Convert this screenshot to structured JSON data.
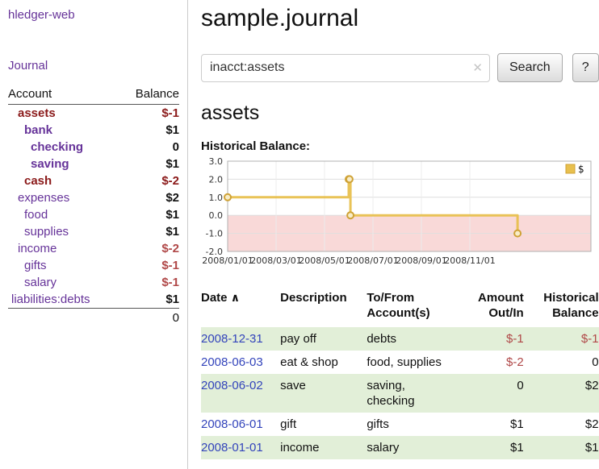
{
  "colors": {
    "purple": "#663399",
    "blue": "#3344bb",
    "red": "#b04848",
    "redDark": "#8b1a1a",
    "green": "#e2efd8"
  },
  "sidebar": {
    "app_title": "hledger-web",
    "journal_label": "Journal",
    "accounts": {
      "header": {
        "account": "Account",
        "balance": "Balance"
      },
      "rows": [
        {
          "name": "assets",
          "balance": "$-1",
          "depth": 1,
          "bold": true,
          "name_neg": true,
          "bal_neg": true
        },
        {
          "name": "bank",
          "balance": "$1",
          "depth": 2,
          "bold": true,
          "name_neg": false,
          "bal_neg": false
        },
        {
          "name": "checking",
          "balance": "0",
          "depth": 3,
          "bold": true,
          "name_neg": false,
          "bal_neg": false
        },
        {
          "name": "saving",
          "balance": "$1",
          "depth": 3,
          "bold": true,
          "name_neg": false,
          "bal_neg": false
        },
        {
          "name": "cash",
          "balance": "$-2",
          "depth": 2,
          "bold": true,
          "name_neg": true,
          "bal_neg": true
        },
        {
          "name": "expenses",
          "balance": "$2",
          "depth": 1,
          "bold": false,
          "name_neg": false,
          "bal_neg": false
        },
        {
          "name": "food",
          "balance": "$1",
          "depth": 2,
          "bold": false,
          "name_neg": false,
          "bal_neg": false
        },
        {
          "name": "supplies",
          "balance": "$1",
          "depth": 2,
          "bold": false,
          "name_neg": false,
          "bal_neg": false
        },
        {
          "name": "income",
          "balance": "$-2",
          "depth": 1,
          "bold": false,
          "name_neg": false,
          "bal_neg": true
        },
        {
          "name": "gifts",
          "balance": "$-1",
          "depth": 2,
          "bold": false,
          "name_neg": false,
          "bal_neg": true
        },
        {
          "name": "salary",
          "balance": "$-1",
          "depth": 2,
          "bold": false,
          "name_neg": false,
          "bal_neg": true
        },
        {
          "name": "liabilities:debts",
          "balance": "$1",
          "depth": 0,
          "bold": false,
          "name_neg": false,
          "bal_neg": false
        }
      ],
      "total": "0"
    }
  },
  "main": {
    "title": "sample.journal",
    "search": {
      "value": "inacct:assets",
      "clear_icon": "✕",
      "button": "Search",
      "help": "?"
    },
    "account_heading": "assets",
    "chart_title": "Historical Balance:",
    "register": {
      "headers": [
        {
          "line1": "Date",
          "line2": "",
          "sort": "∧",
          "align": "left"
        },
        {
          "line1": "Description",
          "line2": "",
          "align": "left"
        },
        {
          "line1": "To/From",
          "line2": "Account(s)",
          "align": "left"
        },
        {
          "line1": "Amount",
          "line2": "Out/In",
          "align": "right"
        },
        {
          "line1": "Historical",
          "line2": "Balance",
          "align": "right"
        }
      ],
      "rows": [
        {
          "date": "2008-12-31",
          "description": "pay off",
          "accounts": [
            "debts"
          ],
          "amount": "$-1",
          "amount_neg": true,
          "balance": "$-1",
          "balance_neg": true,
          "shaded": true
        },
        {
          "date": "2008-06-03",
          "description": "eat & shop",
          "accounts": [
            "food, supplies"
          ],
          "amount": "$-2",
          "amount_neg": true,
          "balance": "0",
          "balance_neg": false,
          "shaded": false
        },
        {
          "date": "2008-06-02",
          "description": "save",
          "accounts": [
            "saving,",
            "checking"
          ],
          "amount": "0",
          "amount_neg": false,
          "balance": "$2",
          "balance_neg": false,
          "shaded": true
        },
        {
          "date": "2008-06-01",
          "description": "gift",
          "accounts": [
            "gifts"
          ],
          "amount": "$1",
          "amount_neg": false,
          "balance": "$2",
          "balance_neg": false,
          "shaded": false
        },
        {
          "date": "2008-01-01",
          "description": "income",
          "accounts": [
            "salary"
          ],
          "amount": "$1",
          "amount_neg": false,
          "balance": "$1",
          "balance_neg": false,
          "shaded": true
        }
      ]
    }
  },
  "chart_data": {
    "type": "step-line",
    "title": "Historical Balance",
    "ylim": [
      -2,
      3
    ],
    "y_ticks": [
      "3.0",
      "2.0",
      "1.0",
      "0.0",
      "-1.0",
      "-2.0"
    ],
    "xlim_months": [
      0,
      15
    ],
    "x_ticks": [
      {
        "pos_month": 0,
        "label": "2008/01/01"
      },
      {
        "pos_month": 2,
        "label": "2008/03/01"
      },
      {
        "pos_month": 4,
        "label": "2008/05/01"
      },
      {
        "pos_month": 6,
        "label": "2008/07/01"
      },
      {
        "pos_month": 8,
        "label": "2008/09/01"
      },
      {
        "pos_month": 10,
        "label": "2008/11/01"
      }
    ],
    "series": [
      {
        "name": "$",
        "points": [
          {
            "date": "2008-01-01",
            "month": 0,
            "value": 1
          },
          {
            "date": "2008-06-01",
            "month": 5.0,
            "value": 2
          },
          {
            "date": "2008-06-02",
            "month": 5.03,
            "value": 2
          },
          {
            "date": "2008-06-03",
            "month": 5.07,
            "value": 0
          },
          {
            "date": "2008-12-31",
            "month": 11.97,
            "value": -1
          }
        ]
      }
    ],
    "legend": [
      {
        "label": "$",
        "color": "#e8c04e"
      }
    ],
    "series_color": "#e8c04e",
    "marker_stroke": "#cfa236",
    "marker_fill": "#f8edc8",
    "negative_region_color": "#f9d9d8",
    "grid": true,
    "legend_position": "top-right"
  }
}
